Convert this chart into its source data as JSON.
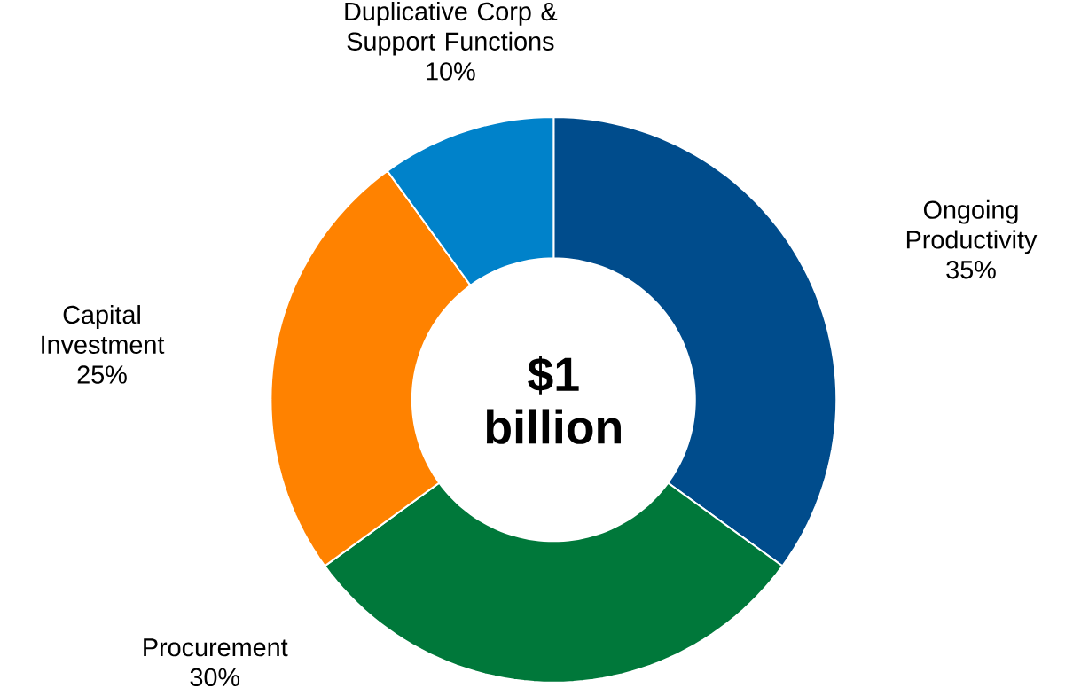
{
  "chart_data": {
    "type": "donut",
    "categories": [
      "Ongoing Productivity",
      "Procurement",
      "Capital Investment",
      "Duplicative Corp & Support Functions"
    ],
    "values": [
      35,
      30,
      25,
      10
    ],
    "value_labels": [
      "35%",
      "30%",
      "25%",
      "10%"
    ],
    "colors": [
      "#004c8c",
      "#00783a",
      "#ff8200",
      "#0082ca"
    ],
    "annotations": [
      "$1 billion"
    ]
  }
}
